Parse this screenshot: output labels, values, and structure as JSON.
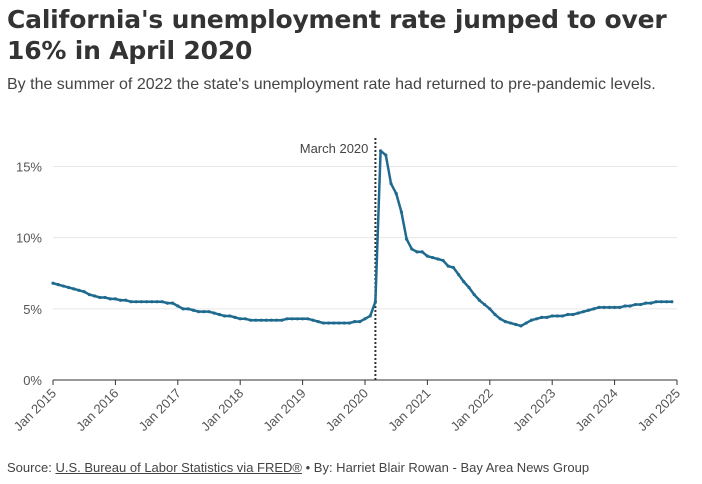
{
  "header": {
    "title": "California's unemployment rate jumped to over 16% in April 2020",
    "subtitle": "By the summer of 2022 the state's unemployment rate had returned to pre-pandemic levels."
  },
  "footer": {
    "source_label": "Source:",
    "source_link": "U.S. Bureau of Labor Statistics via FRED®",
    "byline": "• By: Harriet Blair Rowan - Bay Area News Group"
  },
  "colors": {
    "line": "#1f6a8f",
    "grid": "#e6e6e6",
    "axis_text": "#555555",
    "marker": "#333333"
  },
  "chart_data": {
    "type": "line",
    "title": "California's unemployment rate jumped to over 16% in April 2020",
    "xlabel": "",
    "ylabel": "",
    "ylim": [
      0,
      17
    ],
    "xlim": [
      "Jan 2015",
      "Jan 2025"
    ],
    "yticks": [
      0,
      5,
      10,
      15
    ],
    "ytick_labels": [
      "0%",
      "5%",
      "10%",
      "15%"
    ],
    "xticks": [
      "Jan 2015",
      "Jan 2016",
      "Jan 2017",
      "Jan 2018",
      "Jan 2019",
      "Jan 2020",
      "Jan 2021",
      "Jan 2022",
      "Jan 2023",
      "Jan 2024",
      "Jan 2025"
    ],
    "grid": true,
    "annotations": [
      {
        "x": "Mar 2020",
        "label": "March 2020",
        "style": "dotted vertical line"
      }
    ],
    "series": [
      {
        "start": "Jan 2015",
        "frequency": "monthly",
        "values": [
          6.8,
          6.7,
          6.6,
          6.5,
          6.4,
          6.3,
          6.2,
          6.0,
          5.9,
          5.8,
          5.8,
          5.7,
          5.7,
          5.6,
          5.6,
          5.5,
          5.5,
          5.5,
          5.5,
          5.5,
          5.5,
          5.5,
          5.4,
          5.4,
          5.2,
          5.0,
          5.0,
          4.9,
          4.8,
          4.8,
          4.8,
          4.7,
          4.6,
          4.5,
          4.5,
          4.4,
          4.3,
          4.3,
          4.2,
          4.2,
          4.2,
          4.2,
          4.2,
          4.2,
          4.2,
          4.3,
          4.3,
          4.3,
          4.3,
          4.3,
          4.2,
          4.1,
          4.0,
          4.0,
          4.0,
          4.0,
          4.0,
          4.0,
          4.1,
          4.1,
          4.3,
          4.5,
          5.5,
          16.1,
          15.8,
          13.8,
          13.1,
          11.8,
          9.9,
          9.2,
          9.0,
          9.0,
          8.7,
          8.6,
          8.5,
          8.4,
          8.0,
          7.9,
          7.4,
          6.9,
          6.5,
          6.0,
          5.6,
          5.3,
          5.0,
          4.6,
          4.3,
          4.1,
          4.0,
          3.9,
          3.8,
          4.0,
          4.2,
          4.3,
          4.4,
          4.4,
          4.5,
          4.5,
          4.5,
          4.6,
          4.6,
          4.7,
          4.8,
          4.9,
          5.0,
          5.1,
          5.1,
          5.1,
          5.1,
          5.1,
          5.2,
          5.2,
          5.3,
          5.3,
          5.4,
          5.4,
          5.5,
          5.5,
          5.5,
          5.5
        ]
      }
    ]
  }
}
